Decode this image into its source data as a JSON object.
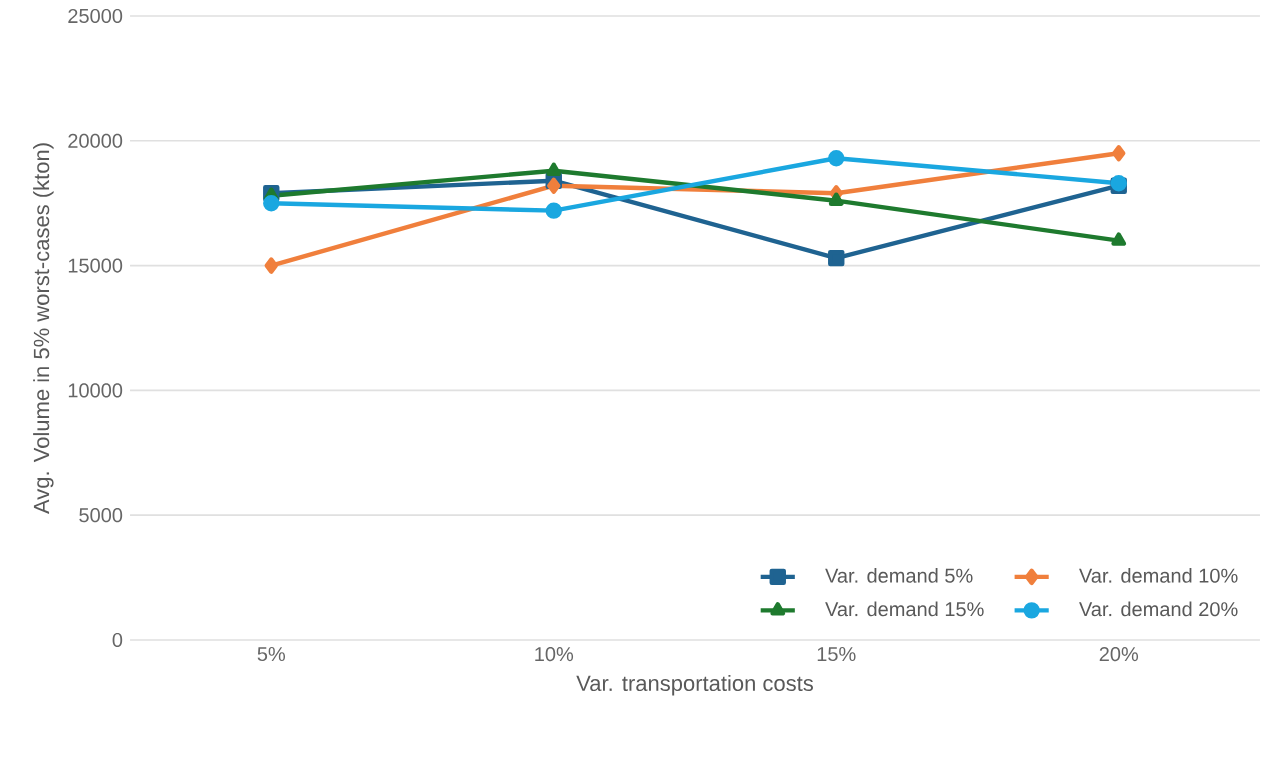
{
  "chart_data": {
    "type": "line",
    "xlabel": "Var. transportation costs",
    "ylabel": "Avg. Volume in 5% worst-cases (kton)",
    "categories": [
      "5%",
      "10%",
      "15%",
      "20%"
    ],
    "series": [
      {
        "name": "Var. demand 5%",
        "color": "#1f6391",
        "marker": "square",
        "values": [
          17900,
          18400,
          15300,
          18200
        ]
      },
      {
        "name": "Var. demand 10%",
        "color": "#f07f3c",
        "marker": "diamond",
        "values": [
          15000,
          18200,
          17900,
          19500
        ]
      },
      {
        "name": "Var. demand 15%",
        "color": "#1e7a2e",
        "marker": "triangle",
        "values": [
          17800,
          18800,
          17600,
          16000
        ]
      },
      {
        "name": "Var. demand 20%",
        "color": "#1aa7e0",
        "marker": "circle",
        "values": [
          17500,
          17200,
          19300,
          18300
        ]
      }
    ],
    "ylim": [
      0,
      25000
    ],
    "yticks": [
      0,
      5000,
      10000,
      15000,
      20000,
      25000
    ],
    "grid": "y",
    "legend": "bottom right"
  }
}
